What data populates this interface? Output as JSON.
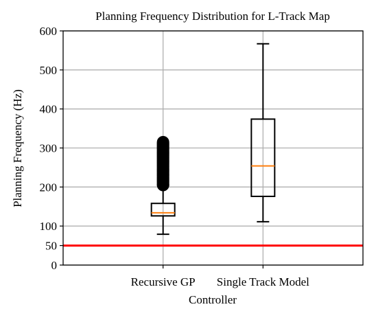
{
  "chart_data": {
    "type": "box",
    "title": "Planning Frequency Distribution for L-Track Map",
    "xlabel": "Controller",
    "ylabel": "Planning Frequency (Hz)",
    "ylim": [
      0,
      600
    ],
    "yticks": [
      0,
      50,
      100,
      200,
      300,
      400,
      500,
      600
    ],
    "grid": true,
    "categories": [
      "Recursive GP",
      "Single Track Model"
    ],
    "boxes": [
      {
        "category": "Recursive GP",
        "whisker_low": 79,
        "q1": 126,
        "median": 134,
        "q3": 158,
        "whisker_high": 205,
        "outliers_range": [
          205,
          315
        ]
      },
      {
        "category": "Single Track Model",
        "whisker_low": 111,
        "q1": 176,
        "median": 254,
        "q3": 374,
        "whisker_high": 567,
        "outliers_range": []
      }
    ],
    "reference_lines": [
      {
        "y": 50,
        "color": "#ff0000"
      }
    ],
    "colors": {
      "box": "#000000",
      "median": "#ff7f0e",
      "grid": "#b0b0b0",
      "reference": "#ff0000"
    }
  }
}
